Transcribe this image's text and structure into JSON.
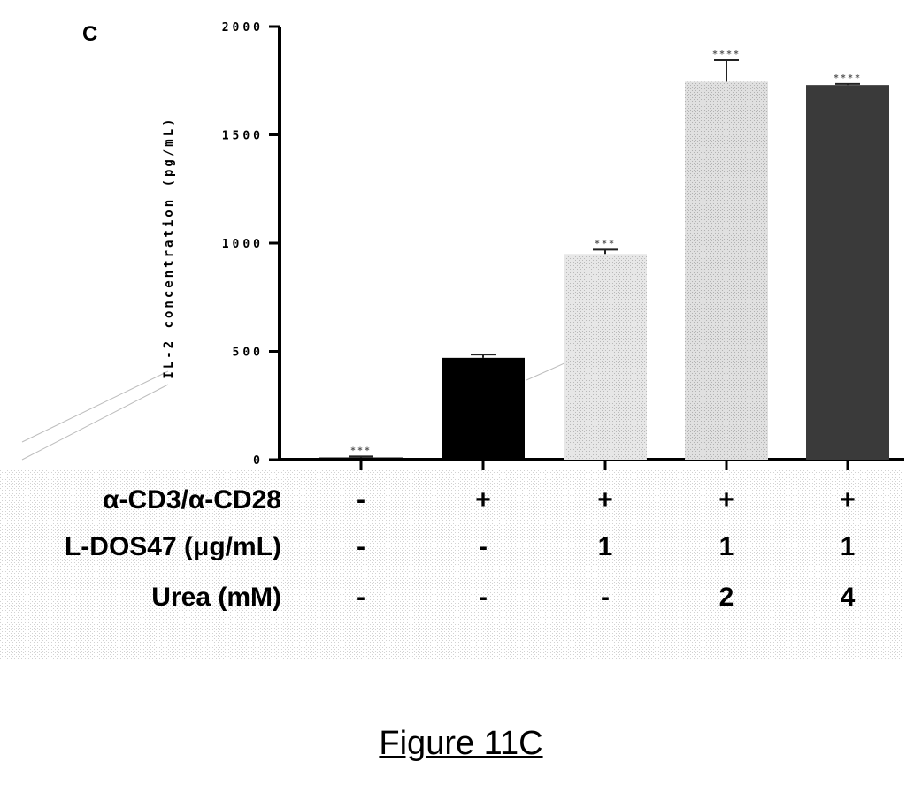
{
  "panel_label": "C",
  "caption": "Figure 11C",
  "colors": {
    "axis": "#000000",
    "bars": [
      "#000000",
      "#000000",
      "#d4d4d4",
      "#c6c6c6",
      "#3a3a3a"
    ],
    "label_band": "#ececec"
  },
  "chart_data": {
    "type": "bar",
    "ylabel": "IL-2 concentration (pg/mL)",
    "ylim": [
      0,
      2000
    ],
    "yticks": [
      {
        "value": 0,
        "label": "0"
      },
      {
        "value": 500,
        "label": "500"
      },
      {
        "value": 1000,
        "label": "1000"
      },
      {
        "value": 1500,
        "label": "1500"
      },
      {
        "value": 2000,
        "label": "2000"
      }
    ],
    "values": [
      10,
      470,
      950,
      1745,
      1730
    ],
    "errors": [
      5,
      15,
      20,
      100,
      5
    ],
    "significance": [
      "***",
      "",
      "***",
      "****",
      "****"
    ],
    "conditions": [
      {
        "label": "α-CD3/α-CD28",
        "values": [
          "-",
          "+",
          "+",
          "+",
          "+"
        ]
      },
      {
        "label": "L-DOS47 (μg/mL)",
        "values": [
          "-",
          "-",
          "1",
          "1",
          "1"
        ]
      },
      {
        "label": "Urea (mM)",
        "values": [
          "-",
          "-",
          "-",
          "2",
          "4"
        ]
      }
    ],
    "grid": false,
    "legend": "none"
  }
}
